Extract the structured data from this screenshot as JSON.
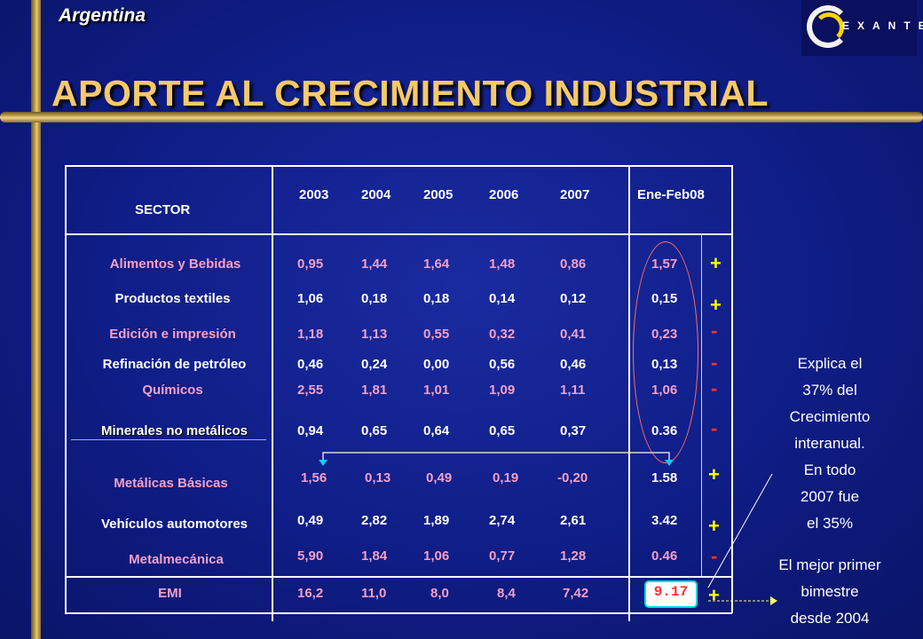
{
  "header": {
    "country": "Argentina",
    "logo_text": "EXANTE",
    "title": "APORTE AL CRECIMIENTO INDUSTRIAL"
  },
  "table": {
    "sector_header": "SECTOR",
    "years": [
      "2003",
      "2004",
      "2005",
      "2006",
      "2007",
      "Ene-Feb08"
    ],
    "rows": [
      {
        "sector": "Alimentos y Bebidas",
        "values": [
          "0,95",
          "1,44",
          "1,64",
          "1,48",
          "0,86",
          "1,57"
        ],
        "sign": "+"
      },
      {
        "sector": "Productos textiles",
        "values": [
          "1,06",
          "0,18",
          "0,18",
          "0,14",
          "0,12",
          "0,15"
        ],
        "sign": "+"
      },
      {
        "sector": "Edición e impresión",
        "values": [
          "1,18",
          "1,13",
          "0,55",
          "0,32",
          "0,41",
          "0,23"
        ],
        "sign": "-"
      },
      {
        "sector": "Refinación de petróleo",
        "values": [
          "0,46",
          "0,24",
          "0,00",
          "0,56",
          "0,46",
          "0,13"
        ],
        "sign": "-"
      },
      {
        "sector": "Químicos",
        "values": [
          "2,55",
          "1,81",
          "1,01",
          "1,09",
          "1,11",
          "1,06"
        ],
        "sign": "-"
      },
      {
        "sector": "Minerales no metálicos",
        "values": [
          "0,94",
          "0,65",
          "0,64",
          "0,65",
          "0,37",
          "0.36"
        ],
        "sign": "-"
      },
      {
        "sector": "Metálicas Básicas",
        "values": [
          "1,56",
          "0,13",
          "0,49",
          "0,19",
          "-0,20",
          "1.58"
        ],
        "sign": "+"
      },
      {
        "sector": "Vehículos automotores",
        "values": [
          "0,49",
          "2,82",
          "1,89",
          "2,74",
          "2,61",
          "3.42"
        ],
        "sign": "+"
      },
      {
        "sector": "Metalmecánica",
        "values": [
          "5,90",
          "1,84",
          "1,06",
          "0,77",
          "1,28",
          "0.46"
        ],
        "sign": "-"
      },
      {
        "sector": "EMI",
        "values": [
          "16,2",
          "11,0",
          "8,0",
          "8,4",
          "7,42",
          "9.17"
        ],
        "sign": "+"
      }
    ]
  },
  "notes": {
    "explica": [
      "Explica el",
      "37% del",
      "Crecimiento",
      "interanual.",
      "En todo",
      "2007 fue",
      "el 35%"
    ],
    "mejor": [
      "El mejor primer",
      "bimestre",
      "desde 2004"
    ]
  },
  "colors": {
    "title": "#f6c96a",
    "pink_rows": "#f2a0c8",
    "plus_sign": "#ffff00",
    "minus_sign": "#ff3333",
    "background": "#0f1d86"
  }
}
